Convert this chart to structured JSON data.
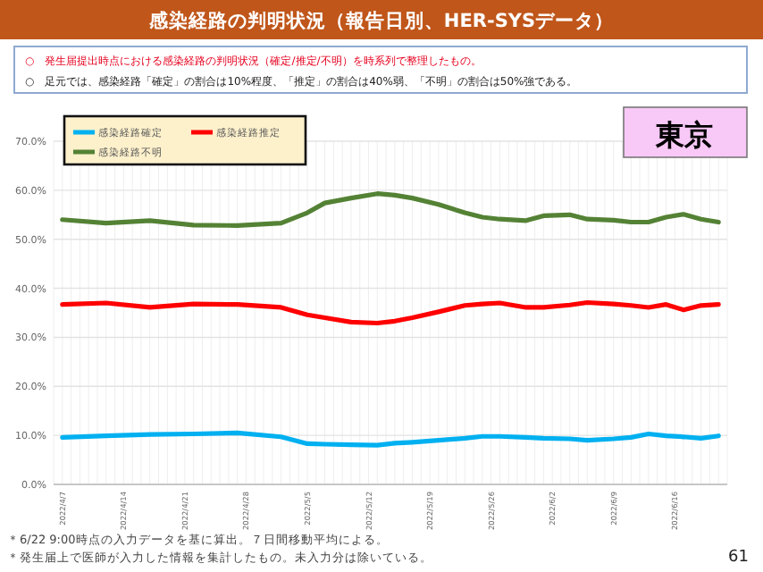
{
  "chart_data": {
    "type": "line",
    "title": "感染経路の判明状況（報告日別、HER-SYSデータ）",
    "annotations": [
      "○　発生届提出時点における感染経路の判明状況（確定/推定/不明）を時系列で整理したもの。",
      "○　足元では、感染経路「確定」の割合は10%程度、「推定」の割合は40%弱、「不明」の割合は50%強である。",
      "東京",
      "＊6/22 9:00時点の入力データを基に算出。７日間移動平均による。",
      "＊発生届上で医師が入力した情報を集計したもの。未入力分は除いている。",
      "61"
    ],
    "x": [
      "2022-04-07",
      "2022-04-12",
      "2022-04-17",
      "2022-04-22",
      "2022-04-27",
      "2022-05-02",
      "2022-05-05",
      "2022-05-07",
      "2022-05-10",
      "2022-05-13",
      "2022-05-15",
      "2022-05-17",
      "2022-05-20",
      "2022-05-23",
      "2022-05-25",
      "2022-05-27",
      "2022-05-30",
      "2022-06-01",
      "2022-06-04",
      "2022-06-06",
      "2022-06-09",
      "2022-06-11",
      "2022-06-13",
      "2022-06-15",
      "2022-06-17",
      "2022-06-19",
      "2022-06-21"
    ],
    "series": [
      {
        "name": "感染経路確定",
        "color": "#00b0f0",
        "values": [
          9.6,
          9.9,
          10.2,
          10.3,
          10.5,
          9.7,
          8.3,
          8.2,
          8.1,
          8.0,
          8.4,
          8.6,
          9.0,
          9.4,
          9.8,
          9.8,
          9.6,
          9.4,
          9.3,
          9.0,
          9.3,
          9.6,
          10.3,
          9.9,
          9.7,
          9.4,
          9.9
        ]
      },
      {
        "name": "感染経路推定",
        "color": "#ff0000",
        "values": [
          36.7,
          37.0,
          36.1,
          36.8,
          36.7,
          36.1,
          34.6,
          34.0,
          33.1,
          32.9,
          33.3,
          34.0,
          35.2,
          36.5,
          36.8,
          37.0,
          36.1,
          36.1,
          36.6,
          37.1,
          36.8,
          36.5,
          36.1,
          36.7,
          35.6,
          36.5,
          36.7
        ]
      },
      {
        "name": "感染経路不明",
        "color": "#548235",
        "values": [
          54.0,
          53.3,
          53.8,
          52.9,
          52.8,
          53.3,
          55.4,
          57.4,
          58.4,
          59.3,
          59.0,
          58.4,
          57.1,
          55.4,
          54.5,
          54.1,
          53.8,
          54.8,
          55.0,
          54.1,
          53.9,
          53.5,
          53.5,
          54.5,
          55.1,
          54.1,
          53.5
        ]
      }
    ],
    "xlim": [
      "2022-04-06",
      "2022-06-22"
    ],
    "xticks": [
      {
        "value": "2022-04-07",
        "label": "2022/4/7"
      },
      {
        "value": "2022-04-14",
        "label": "2022/4/14"
      },
      {
        "value": "2022-04-21",
        "label": "2022/4/21"
      },
      {
        "value": "2022-04-28",
        "label": "2022/4/28"
      },
      {
        "value": "2022-05-05",
        "label": "2022/5/5"
      },
      {
        "value": "2022-05-12",
        "label": "2022/5/12"
      },
      {
        "value": "2022-05-19",
        "label": "2022/5/19"
      },
      {
        "value": "2022-05-26",
        "label": "2022/5/26"
      },
      {
        "value": "2022-06-02",
        "label": "2022/6/2"
      },
      {
        "value": "2022-06-09",
        "label": "2022/6/9"
      },
      {
        "value": "2022-06-16",
        "label": "2022/6/16"
      }
    ],
    "ylim": [
      0,
      70
    ],
    "yticks": [
      {
        "value": 0,
        "label": "0.0%"
      },
      {
        "value": 10,
        "label": "10.0%"
      },
      {
        "value": 20,
        "label": "20.0%"
      },
      {
        "value": 30,
        "label": "30.0%"
      },
      {
        "value": 40,
        "label": "40.0%"
      },
      {
        "value": 50,
        "label": "50.0%"
      },
      {
        "value": 60,
        "label": "60.0%"
      },
      {
        "value": 70,
        "label": "70.0%"
      }
    ],
    "grid": true,
    "legend": "top left",
    "marker": "none",
    "line_style": "solid"
  }
}
